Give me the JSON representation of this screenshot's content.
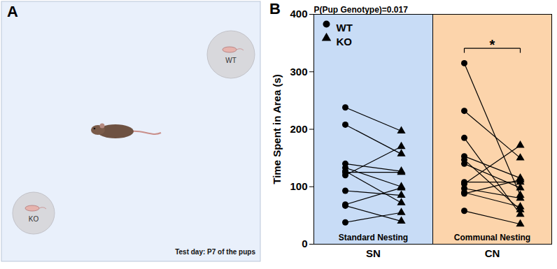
{
  "panel_labels": [
    "A",
    "B"
  ],
  "diagram": {
    "arena_labels": {
      "top_right": "WT",
      "bottom_left": "KO"
    },
    "caption": "Test day: P7 of the pups"
  },
  "chart_data": {
    "type": "paired_dot",
    "annotation": "P(Pup Genotype)=0.017",
    "ylabel": "Time Spent in Area (s)",
    "ylim": [
      0,
      400
    ],
    "yticks": [
      0,
      100,
      200,
      300,
      400
    ],
    "categories": [
      "SN",
      "CN"
    ],
    "group_labels": [
      "Standard Nesting",
      "Communal Nesting"
    ],
    "group_colors": [
      "#c8dcf6",
      "#fcd4ab"
    ],
    "legend": "upper left",
    "series": [
      {
        "name": "WT",
        "marker": "circle",
        "color": "#000000",
        "values": [
          [
            238,
            208,
            140,
            133,
            127,
            120,
            125,
            93,
            69,
            67,
            38
          ],
          [
            315,
            232,
            185,
            153,
            147,
            140,
            108,
            105,
            97,
            90,
            88,
            58
          ]
        ]
      },
      {
        "name": "KO",
        "marker": "triangle",
        "color": "#000000",
        "values": [
          [
            197,
            157,
            127,
            100,
            72,
            170,
            125,
            85,
            98,
            40,
            55
          ],
          [
            85,
            150,
            52,
            115,
            60,
            98,
            108,
            172,
            80,
            65,
            112,
            35
          ]
        ]
      }
    ],
    "significance": [
      {
        "group": "CN",
        "text": "*"
      }
    ]
  }
}
